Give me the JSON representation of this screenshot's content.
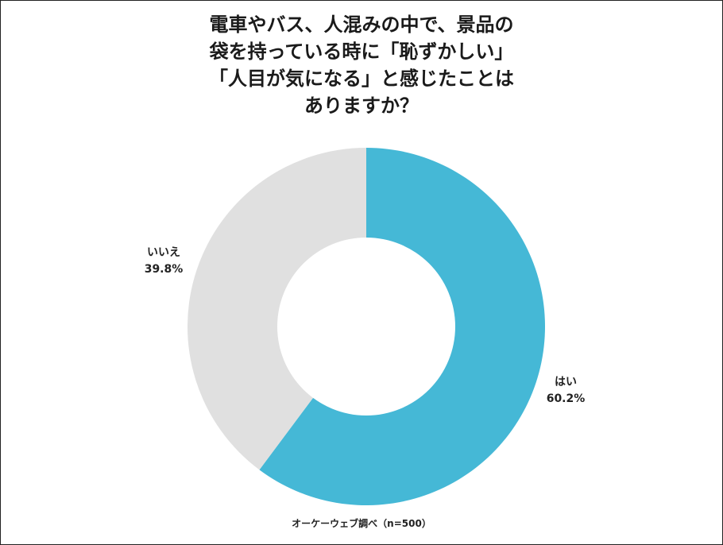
{
  "chart_data": {
    "type": "pie",
    "style": "donut",
    "title_lines": [
      "電車やバス、人混みの中で、景品の",
      "袋を持っている時に「恥ずかしい」",
      "「人目が気になる」と感じたことは",
      "ありますか？"
    ],
    "slices": [
      {
        "label": "はい",
        "value": 60.2,
        "display": "60.2%",
        "color": "#45b8d6"
      },
      {
        "label": "いいえ",
        "value": 39.8,
        "display": "39.8%",
        "color": "#e0e0e0"
      }
    ],
    "source": "オーケーウェブ調べ（n=500）"
  }
}
